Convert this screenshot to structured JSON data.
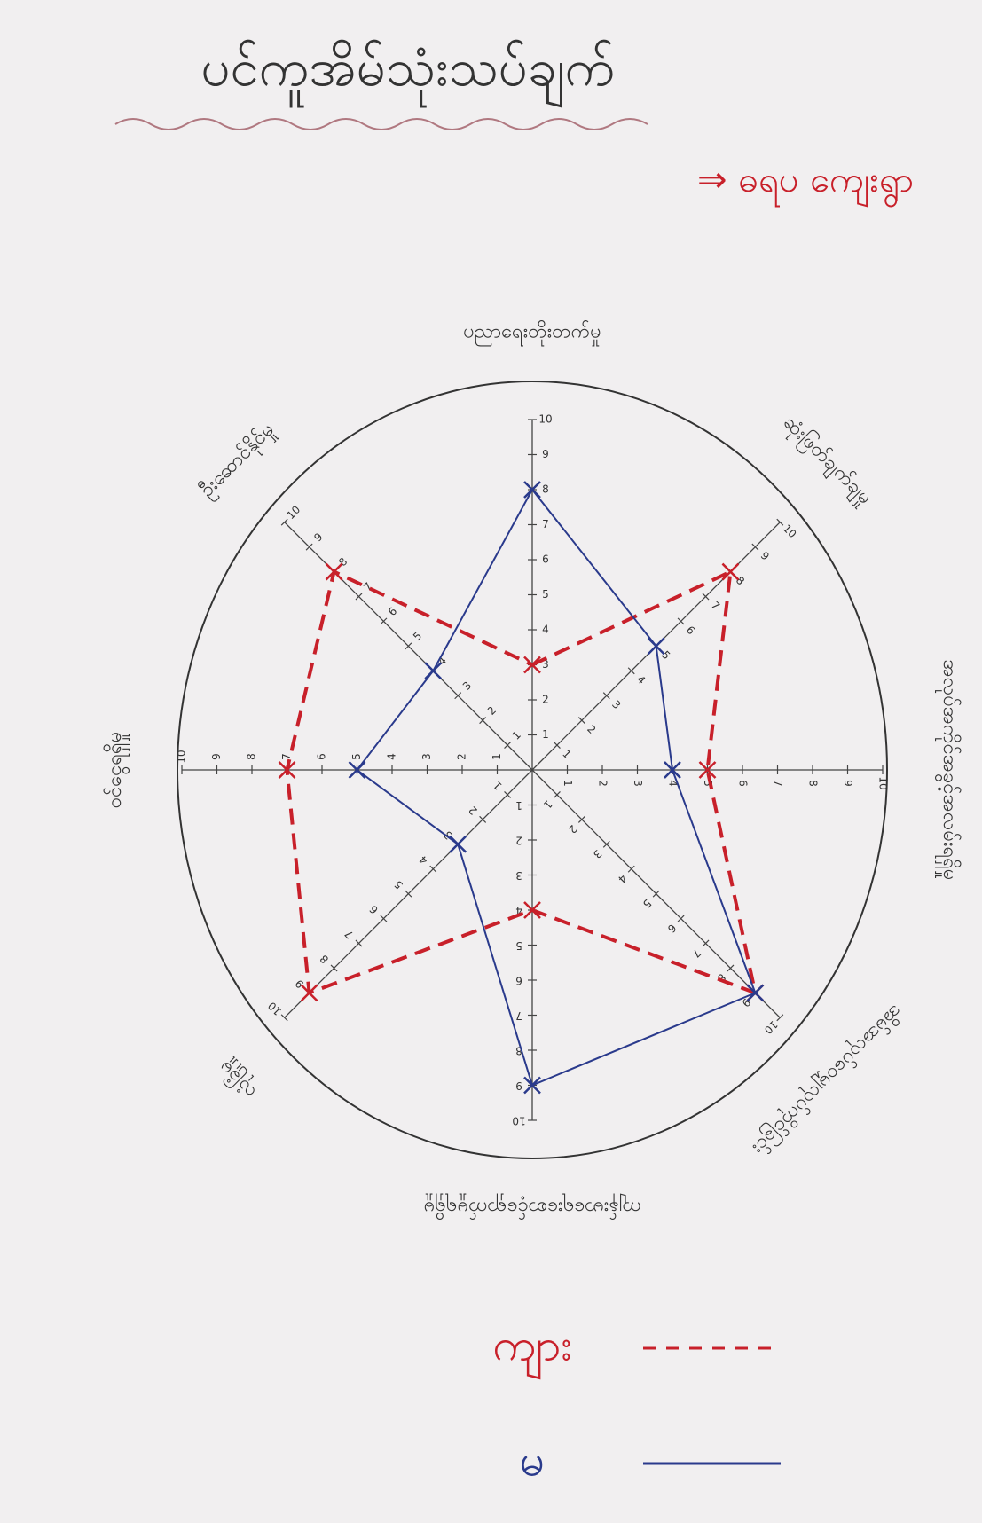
{
  "chart_data": {
    "type": "radar",
    "title": "ပင်ကူအိမ်သုံးသပ်ချက်",
    "subtitle": "⇒ ဓရပ ကျေးရွာ",
    "categories": [
      "ပညာရေးတိုးတက်မှု",
      "ဆုံးဖြတ်ချက်ချမှု",
      "အလုပ်အကိုင်အခွင့်အလမ်းရရှိမှု",
      "အိမ်အလုပ်ဝေမျှလုပ်ကိုင်ခြင်း",
      "ကျန်းမာရေးစောင့်ရှောက်မှုရရှိမှု",
      "လုံခြုံမှု",
      "ဝင်ငွေရရှိမှု",
      "ဦးဆောင်နိုင်မှု"
    ],
    "rlim": [
      0,
      10
    ],
    "rticks": [
      1,
      2,
      3,
      4,
      5,
      6,
      7,
      8,
      9,
      10
    ],
    "series": [
      {
        "name": "ကျား",
        "color": "#c8202a",
        "dash": true,
        "values": [
          3,
          8,
          5,
          9,
          4,
          9,
          7,
          8
        ]
      },
      {
        "name": "မ",
        "color": "#2a3a8c",
        "dash": false,
        "values": [
          8,
          5,
          4,
          9,
          9,
          3,
          5,
          4
        ]
      }
    ]
  }
}
